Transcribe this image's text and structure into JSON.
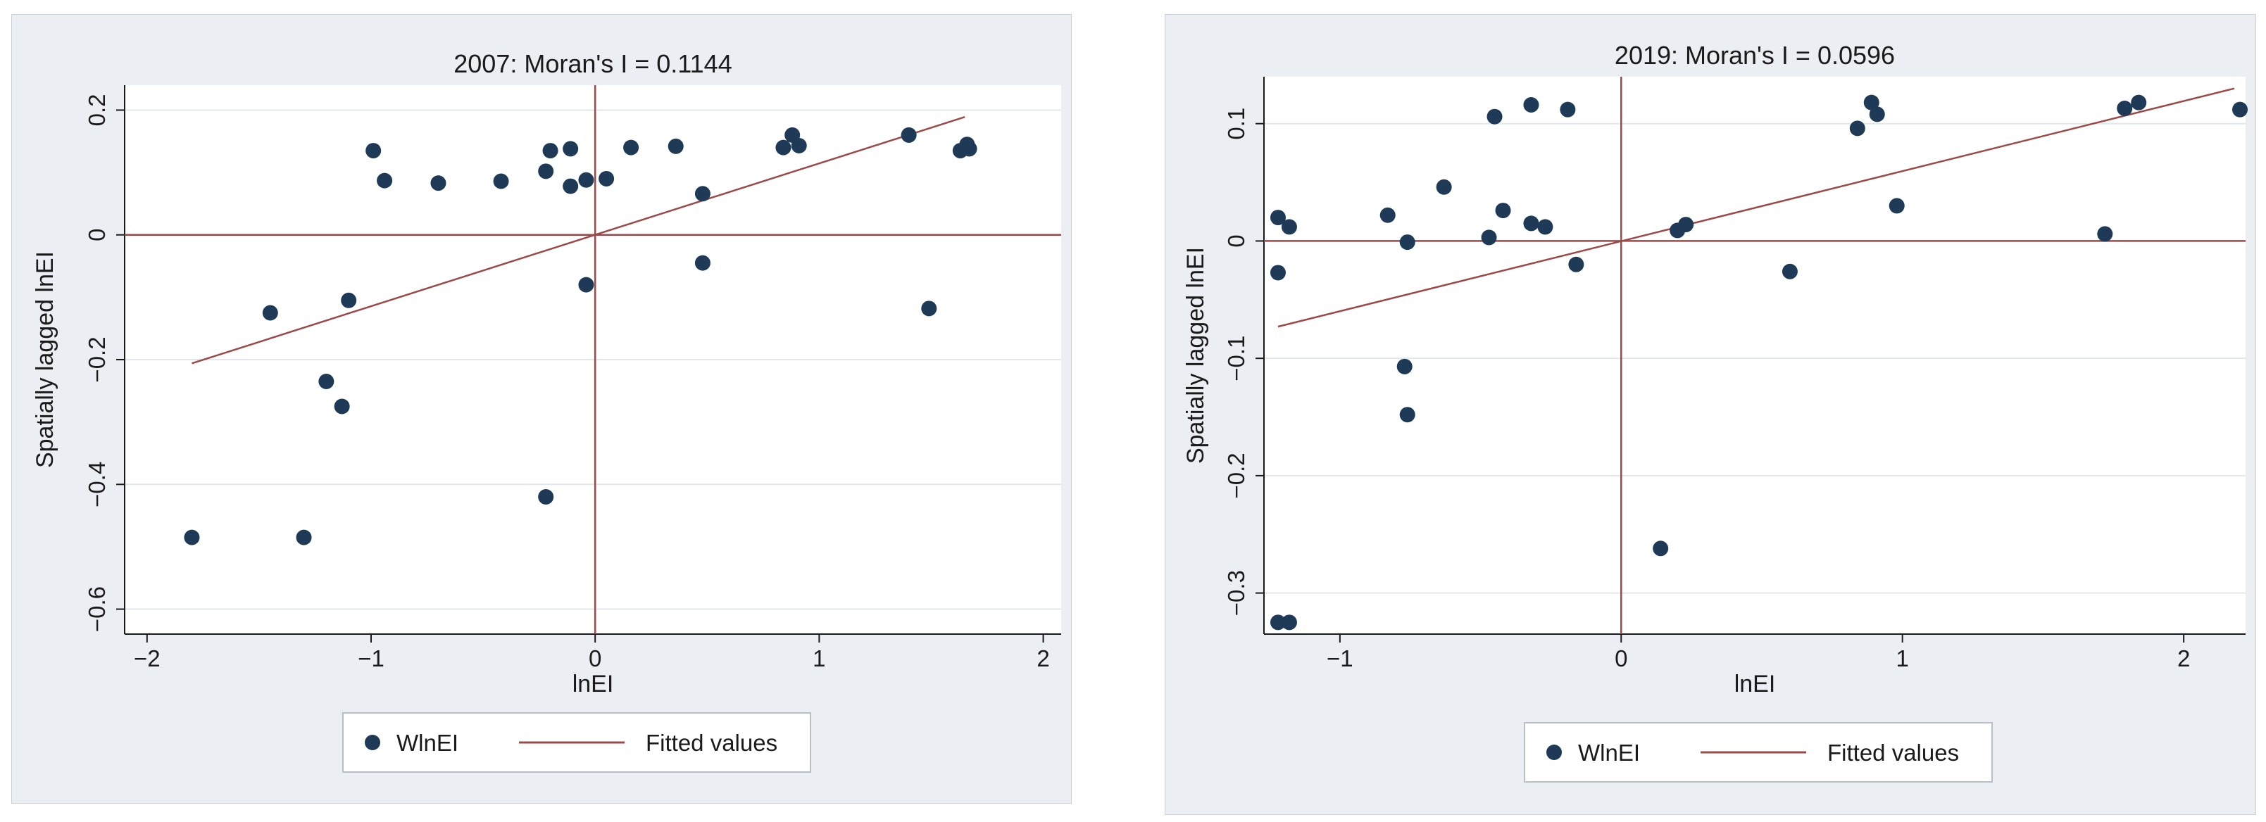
{
  "colors": {
    "panel_bg": "#ebeff3",
    "plot_bg": "#ffffff",
    "grid": "#e3e7ec",
    "point": "#1e3a56",
    "line": "#9b4a4a",
    "axis": "#1a1a1a"
  },
  "chart_data": [
    {
      "type": "scatter",
      "title": "2007: Moran's I = 0.1144",
      "xlabel": "lnEI",
      "ylabel": "Spatially lagged lnEI",
      "xlim": [
        -2.1,
        2.08
      ],
      "ylim": [
        -0.64,
        0.24
      ],
      "xticks": [
        -2,
        -1,
        0,
        1,
        2
      ],
      "xtick_labels": [
        "−2",
        "−1",
        "0",
        "1",
        "2"
      ],
      "yticks": [
        0.2,
        0,
        -0.2,
        -0.4,
        -0.6
      ],
      "ytick_labels": [
        "0.2",
        "0",
        "−0.2",
        "−0.4",
        "−0.6"
      ],
      "grid": true,
      "reference_lines": {
        "x": 0,
        "y": 0
      },
      "legend": [
        "WlnEI",
        "Fitted values"
      ],
      "legend_position": "bottom-center",
      "fitted": {
        "x": [
          -1.8,
          1.65
        ],
        "y": [
          -0.206,
          0.189
        ]
      },
      "series": [
        {
          "name": "WlnEI",
          "points": [
            [
              -1.8,
              -0.485
            ],
            [
              -1.3,
              -0.485
            ],
            [
              -1.45,
              -0.125
            ],
            [
              -1.2,
              -0.235
            ],
            [
              -1.13,
              -0.275
            ],
            [
              -1.1,
              -0.105
            ],
            [
              -0.99,
              0.135
            ],
            [
              -0.94,
              0.087
            ],
            [
              -0.7,
              0.083
            ],
            [
              -0.42,
              0.086
            ],
            [
              -0.22,
              0.102
            ],
            [
              -0.2,
              0.135
            ],
            [
              -0.22,
              -0.42
            ],
            [
              -0.11,
              0.138
            ],
            [
              -0.11,
              0.078
            ],
            [
              -0.04,
              0.088
            ],
            [
              -0.04,
              -0.08
            ],
            [
              0.05,
              0.09
            ],
            [
              0.16,
              0.14
            ],
            [
              0.36,
              0.142
            ],
            [
              0.48,
              0.066
            ],
            [
              0.48,
              -0.045
            ],
            [
              0.84,
              0.14
            ],
            [
              0.88,
              0.16
            ],
            [
              0.91,
              0.143
            ],
            [
              1.4,
              0.16
            ],
            [
              1.49,
              -0.118
            ],
            [
              1.63,
              0.135
            ],
            [
              1.66,
              0.145
            ],
            [
              1.67,
              0.138
            ]
          ]
        }
      ]
    },
    {
      "type": "scatter",
      "title": "2019: Moran's I = 0.0596",
      "xlabel": "lnEI",
      "ylabel": "Spatially lagged lnEI",
      "xlim": [
        -1.27,
        2.22
      ],
      "ylim": [
        -0.335,
        0.14
      ],
      "xticks": [
        -1,
        0,
        1,
        2
      ],
      "xtick_labels": [
        "−1",
        "0",
        "1",
        "2"
      ],
      "yticks": [
        0.1,
        0,
        -0.1,
        -0.2,
        -0.3
      ],
      "ytick_labels": [
        "0.1",
        "0",
        "−0.1",
        "−0.2",
        "−0.3"
      ],
      "grid": true,
      "reference_lines": {
        "x": 0,
        "y": 0
      },
      "legend": [
        "WlnEI",
        "Fitted values"
      ],
      "legend_position": "bottom-center",
      "fitted": {
        "x": [
          -1.22,
          2.18
        ],
        "y": [
          -0.073,
          0.13
        ]
      },
      "series": [
        {
          "name": "WlnEI",
          "points": [
            [
              -1.22,
              0.02
            ],
            [
              -1.18,
              0.012
            ],
            [
              -1.22,
              -0.027
            ],
            [
              -1.22,
              -0.325
            ],
            [
              -1.18,
              -0.325
            ],
            [
              -0.83,
              0.022
            ],
            [
              -0.76,
              -0.001
            ],
            [
              -0.77,
              -0.107
            ],
            [
              -0.76,
              -0.148
            ],
            [
              -0.63,
              0.046
            ],
            [
              -0.47,
              0.003
            ],
            [
              -0.45,
              0.106
            ],
            [
              -0.42,
              0.026
            ],
            [
              -0.32,
              0.116
            ],
            [
              -0.32,
              0.015
            ],
            [
              -0.27,
              0.012
            ],
            [
              -0.19,
              0.112
            ],
            [
              -0.16,
              -0.02
            ],
            [
              0.14,
              -0.262
            ],
            [
              0.2,
              0.009
            ],
            [
              0.23,
              0.014
            ],
            [
              0.6,
              -0.026
            ],
            [
              0.84,
              0.096
            ],
            [
              0.89,
              0.118
            ],
            [
              0.91,
              0.108
            ],
            [
              0.98,
              0.03
            ],
            [
              1.72,
              0.006
            ],
            [
              1.79,
              0.113
            ],
            [
              1.84,
              0.118
            ],
            [
              2.2,
              0.112
            ]
          ]
        }
      ]
    }
  ]
}
